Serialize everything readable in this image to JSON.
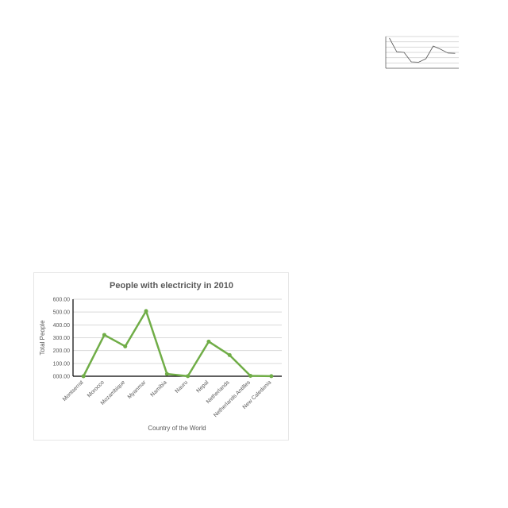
{
  "chart_data": [
    {
      "type": "line",
      "title": "People with electricity in 2010",
      "xlabel": "Country of the World",
      "ylabel": "Total People",
      "categories": [
        "Montserrat",
        "Morocco",
        "Mozambique",
        "Myanmar",
        "Namibia",
        "Nauru",
        "Nepal",
        "Netherlands",
        "Netherlands Antilles",
        "New Caledonia"
      ],
      "series": [
        {
          "values": [
            0,
            322,
            233,
            508,
            18,
            1,
            270,
            165,
            3,
            1
          ],
          "color": "#70ad47"
        }
      ],
      "ylim": [
        0,
        600
      ],
      "yticks": [
        "000.00",
        "100.00",
        "200.00",
        "300.00",
        "400.00",
        "500.00",
        "600.00"
      ],
      "grid": true,
      "legend": "none"
    },
    {
      "type": "line",
      "title": "",
      "xlabel": "",
      "ylabel": "",
      "categories": [
        "",
        "",
        "",
        "",
        "",
        "",
        "",
        "",
        "",
        ""
      ],
      "series": [
        {
          "values": [
            950,
            520,
            500,
            200,
            190,
            300,
            700,
            600,
            480,
            470
          ],
          "color": "#555555"
        }
      ],
      "ylim": [
        0,
        1000
      ],
      "grid": true,
      "legend": "none"
    }
  ]
}
